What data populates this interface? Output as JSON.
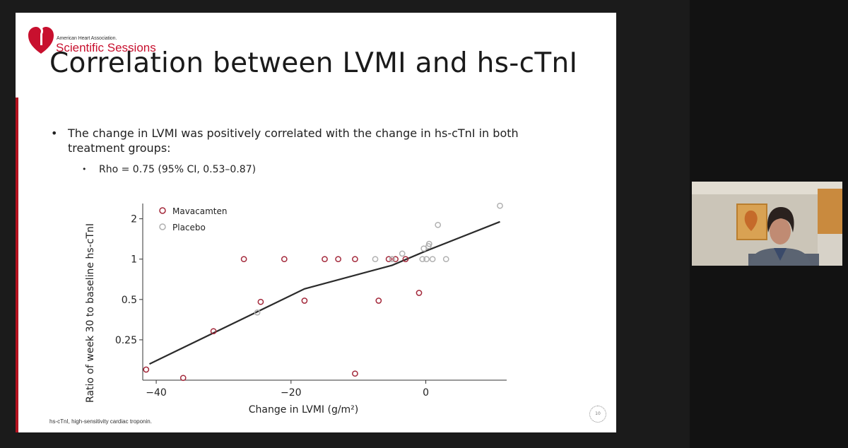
{
  "slide": {
    "brand_top": "American Heart Association.",
    "brand_sessions": "Scientific Sessions",
    "title": "Correlation between LVMI and hs-cTnI",
    "bullet": "The change in LVMI was positively correlated with the change in hs-cTnI in both treatment groups:",
    "sub_bullet": "Rho = 0.75 (95% CI, 0.53–0.87)",
    "footnote": "hs-cTnI, high-sensitivity cardiac troponin.",
    "page_number": "10"
  },
  "colors": {
    "mavacamten": "#a3283a",
    "placebo": "#b0b0b0",
    "trend": "#2b2b2b",
    "accent": "#b3121f"
  },
  "chart_data": {
    "type": "scatter",
    "xlabel": "Change in LVMI (g/m²)",
    "ylabel": "Ratio of week 30 to baseline hs-cTnI",
    "xlim": [
      -42,
      12
    ],
    "ylim": [
      0.125,
      2.6
    ],
    "yscale": "log2",
    "xticks": [
      -40,
      -20,
      0
    ],
    "xtick_labels": [
      "−40",
      "−20",
      "0"
    ],
    "yticks": [
      0.25,
      0.5,
      1,
      2
    ],
    "ytick_labels": [
      "0.25",
      "0.5",
      "1",
      "2"
    ],
    "grid": false,
    "legend_position": "top-left",
    "series": [
      {
        "name": "Mavacamten",
        "marker": "open-circle",
        "points": [
          [
            -41.5,
            0.15
          ],
          [
            -36,
            0.13
          ],
          [
            -31.5,
            0.29
          ],
          [
            -27,
            1.0
          ],
          [
            -24.5,
            0.48
          ],
          [
            -21,
            1.0
          ],
          [
            -18,
            0.49
          ],
          [
            -15,
            1.0
          ],
          [
            -13,
            1.0
          ],
          [
            -10.5,
            0.14
          ],
          [
            -10.5,
            1.0
          ],
          [
            -7,
            0.49
          ],
          [
            -5.5,
            1.0
          ],
          [
            -4.5,
            1.0
          ],
          [
            -3,
            1.0
          ],
          [
            -1,
            0.56
          ]
        ]
      },
      {
        "name": "Placebo",
        "marker": "open-circle",
        "points": [
          [
            -25,
            0.4
          ],
          [
            -7.5,
            1.0
          ],
          [
            -5,
            1.0
          ],
          [
            -3.5,
            1.1
          ],
          [
            -0.5,
            1.0
          ],
          [
            -0.3,
            1.2
          ],
          [
            0.1,
            1.0
          ],
          [
            0.4,
            1.25
          ],
          [
            0.5,
            1.3
          ],
          [
            1,
            1.0
          ],
          [
            1.8,
            1.8
          ],
          [
            3,
            1.0
          ],
          [
            11,
            2.5
          ]
        ]
      },
      {
        "name": "",
        "type": "line",
        "points": [
          [
            -41,
            0.165
          ],
          [
            -18,
            0.6
          ],
          [
            -5,
            0.9
          ],
          [
            0,
            1.15
          ],
          [
            11,
            1.9
          ]
        ]
      }
    ]
  }
}
